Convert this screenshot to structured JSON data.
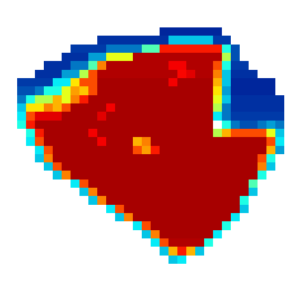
{
  "chart_data": {
    "type": "heatmap",
    "tick_labels": false,
    "zlim": [
      0,
      1
    ],
    "cells": [
      [
        null,
        null,
        null,
        null,
        null,
        null,
        null,
        null,
        null,
        null,
        null,
        null,
        null,
        null,
        null,
        null,
        0.08,
        0.08,
        0.08,
        0.08,
        0.08,
        0.08,
        0.08,
        null,
        null,
        null,
        null,
        null,
        null,
        null
      ],
      [
        null,
        null,
        null,
        null,
        null,
        null,
        null,
        null,
        null,
        0.1,
        0.1,
        0.1,
        0.1,
        0.1,
        0.1,
        0.1,
        0.1,
        0.3,
        0.3,
        0.3,
        0.3,
        0.3,
        0.12,
        0.12,
        null,
        null,
        null,
        null,
        null,
        null
      ],
      [
        null,
        null,
        null,
        null,
        null,
        null,
        0.12,
        0.12,
        0.12,
        0.12,
        0.2,
        0.2,
        0.2,
        0.2,
        0.45,
        0.45,
        0.85,
        0.85,
        0.85,
        0.85,
        0.85,
        0.85,
        0.85,
        0.4,
        0.15,
        null,
        null,
        null,
        null,
        null
      ],
      [
        null,
        null,
        null,
        null,
        null,
        0.1,
        0.1,
        0.1,
        0.25,
        0.25,
        0.6,
        0.6,
        0.6,
        0.95,
        0.95,
        0.95,
        0.95,
        0.95,
        0.95,
        0.95,
        0.95,
        0.95,
        0.95,
        0.55,
        0.15,
        null,
        null,
        null,
        null,
        null
      ],
      [
        null,
        null,
        null,
        0.1,
        0.1,
        0.1,
        0.2,
        0.2,
        0.45,
        0.75,
        0.95,
        0.95,
        0.95,
        0.95,
        0.95,
        0.95,
        0.95,
        0.88,
        0.88,
        0.95,
        0.95,
        0.95,
        0.8,
        0.4,
        0.12,
        0.12,
        null,
        null,
        null,
        null
      ],
      [
        null,
        null,
        0.1,
        0.1,
        0.1,
        0.25,
        0.25,
        0.55,
        0.8,
        0.95,
        0.95,
        0.95,
        0.95,
        0.95,
        0.95,
        0.95,
        0.95,
        0.95,
        0.87,
        0.9,
        0.95,
        0.95,
        0.75,
        0.3,
        0.1,
        0.1,
        0.1,
        null,
        null,
        null
      ],
      [
        0.12,
        0.12,
        0.12,
        0.12,
        0.35,
        0.35,
        0.65,
        0.8,
        0.8,
        0.96,
        0.96,
        0.96,
        0.96,
        0.96,
        0.96,
        0.96,
        0.96,
        0.88,
        0.96,
        0.96,
        0.96,
        0.96,
        0.7,
        0.3,
        0.08,
        0.08,
        0.08,
        0.08,
        0.08,
        null
      ],
      [
        0.15,
        0.15,
        0.2,
        0.4,
        0.4,
        0.6,
        0.72,
        0.68,
        0.8,
        0.96,
        0.96,
        0.96,
        0.96,
        0.96,
        0.96,
        0.96,
        0.96,
        0.96,
        0.96,
        0.96,
        0.96,
        0.96,
        0.65,
        0.25,
        0.08,
        0.08,
        0.08,
        0.08,
        0.08,
        null
      ],
      [
        0.2,
        0.4,
        0.55,
        0.55,
        0.7,
        0.6,
        0.75,
        0.85,
        0.96,
        0.96,
        0.96,
        0.96,
        0.96,
        0.96,
        0.96,
        0.96,
        0.96,
        0.96,
        0.96,
        0.96,
        0.96,
        0.96,
        0.6,
        0.3,
        0.1,
        0.1,
        0.1,
        0.1,
        0.1,
        0.1
      ],
      [
        0.3,
        0.65,
        0.65,
        0.75,
        0.7,
        0.8,
        0.96,
        0.96,
        0.96,
        0.96,
        0.88,
        0.96,
        0.96,
        0.96,
        0.96,
        0.96,
        0.96,
        0.96,
        0.96,
        0.96,
        0.96,
        0.96,
        0.55,
        0.2,
        0.1,
        0.1,
        0.1,
        0.1,
        0.1,
        0.1
      ],
      [
        0.35,
        0.8,
        0.9,
        0.9,
        0.9,
        0.96,
        0.96,
        0.96,
        0.96,
        0.9,
        0.96,
        0.96,
        0.96,
        0.96,
        0.96,
        0.96,
        0.96,
        0.96,
        0.96,
        0.96,
        0.96,
        0.96,
        0.35,
        0.2,
        0.12,
        0.12,
        0.12,
        0.12,
        0.12,
        0.12
      ],
      [
        0.4,
        0.85,
        0.96,
        0.96,
        0.96,
        0.96,
        0.96,
        0.96,
        0.96,
        0.96,
        0.96,
        0.96,
        0.96,
        0.96,
        0.96,
        0.96,
        0.96,
        0.96,
        0.96,
        0.96,
        0.96,
        0.96,
        null,
        0.4,
        0.2,
        0.15,
        0.15,
        0.2,
        0.25,
        0.2
      ],
      [
        null,
        0.4,
        0.85,
        0.96,
        0.96,
        0.96,
        0.96,
        0.96,
        0.88,
        0.96,
        0.96,
        0.96,
        0.96,
        0.96,
        0.96,
        0.96,
        0.96,
        0.96,
        0.96,
        0.96,
        0.96,
        0.96,
        0.55,
        0.7,
        0.8,
        0.8,
        0.8,
        0.8,
        0.6,
        0.3
      ],
      [
        null,
        0.35,
        0.8,
        0.96,
        0.96,
        0.96,
        0.96,
        0.96,
        0.96,
        0.88,
        0.96,
        0.96,
        0.96,
        0.7,
        0.75,
        0.96,
        0.96,
        0.96,
        0.96,
        0.96,
        0.96,
        0.96,
        0.96,
        0.96,
        0.96,
        0.96,
        0.96,
        0.96,
        0.8,
        0.35
      ],
      [
        null,
        null,
        0.35,
        0.8,
        0.96,
        0.96,
        0.96,
        0.96,
        0.96,
        0.96,
        0.96,
        0.96,
        0.96,
        0.8,
        0.72,
        0.85,
        0.96,
        0.96,
        0.96,
        0.96,
        0.96,
        0.96,
        0.96,
        0.96,
        0.96,
        0.96,
        0.96,
        0.96,
        0.7,
        0.25
      ],
      [
        null,
        null,
        0.3,
        0.75,
        0.96,
        0.96,
        0.96,
        0.96,
        0.96,
        0.96,
        0.96,
        0.96,
        0.96,
        0.96,
        0.96,
        0.96,
        0.96,
        0.96,
        0.96,
        0.96,
        0.96,
        0.96,
        0.96,
        0.96,
        0.96,
        0.96,
        0.96,
        0.8,
        0.4,
        null
      ],
      [
        null,
        null,
        null,
        0.3,
        0.8,
        0.96,
        0.96,
        0.96,
        0.96,
        0.96,
        0.96,
        0.96,
        0.96,
        0.96,
        0.96,
        0.96,
        0.96,
        0.96,
        0.96,
        0.96,
        0.96,
        0.96,
        0.96,
        0.96,
        0.96,
        0.96,
        0.96,
        0.75,
        0.3,
        null
      ],
      [
        null,
        null,
        null,
        null,
        0.3,
        0.75,
        0.96,
        0.96,
        0.96,
        0.96,
        0.96,
        0.96,
        0.96,
        0.96,
        0.96,
        0.96,
        0.96,
        0.96,
        0.96,
        0.96,
        0.96,
        0.96,
        0.96,
        0.96,
        0.96,
        0.96,
        0.96,
        0.4,
        null,
        null
      ],
      [
        null,
        null,
        null,
        null,
        null,
        null,
        0.35,
        0.8,
        0.96,
        0.96,
        0.96,
        0.96,
        0.96,
        0.96,
        0.96,
        0.96,
        0.96,
        0.96,
        0.96,
        0.96,
        0.96,
        0.96,
        0.96,
        0.96,
        0.96,
        0.96,
        0.45,
        null,
        null,
        null
      ],
      [
        null,
        null,
        null,
        null,
        null,
        null,
        null,
        0.3,
        0.75,
        0.96,
        0.96,
        0.96,
        0.96,
        0.96,
        0.96,
        0.96,
        0.96,
        0.96,
        0.96,
        0.96,
        0.96,
        0.96,
        0.96,
        0.96,
        0.96,
        0.96,
        0.3,
        null,
        null,
        null
      ],
      [
        null,
        null,
        null,
        null,
        null,
        null,
        null,
        null,
        0.3,
        0.75,
        0.96,
        0.96,
        0.96,
        0.96,
        0.96,
        0.96,
        0.96,
        0.96,
        0.96,
        0.96,
        0.96,
        0.96,
        0.96,
        0.96,
        0.96,
        0.4,
        null,
        null,
        null,
        null
      ],
      [
        null,
        null,
        null,
        null,
        null,
        null,
        null,
        null,
        null,
        null,
        0.35,
        0.8,
        0.96,
        0.96,
        0.96,
        0.96,
        0.96,
        0.96,
        0.96,
        0.96,
        0.96,
        0.96,
        0.96,
        0.96,
        0.96,
        0.3,
        null,
        null,
        null,
        null
      ],
      [
        null,
        null,
        null,
        null,
        null,
        null,
        null,
        null,
        null,
        null,
        null,
        0.3,
        0.75,
        0.96,
        0.96,
        0.96,
        0.96,
        0.96,
        0.96,
        0.96,
        0.96,
        0.96,
        0.96,
        0.96,
        0.35,
        null,
        null,
        null,
        null,
        null
      ],
      [
        null,
        null,
        null,
        null,
        null,
        null,
        null,
        null,
        null,
        null,
        null,
        null,
        null,
        0.35,
        0.8,
        0.96,
        0.96,
        0.96,
        0.96,
        0.96,
        0.96,
        0.96,
        0.96,
        0.4,
        null,
        null,
        null,
        null,
        null,
        null
      ],
      [
        null,
        null,
        null,
        null,
        null,
        null,
        null,
        null,
        null,
        null,
        null,
        null,
        null,
        null,
        0.3,
        0.75,
        0.96,
        0.96,
        0.96,
        0.96,
        0.96,
        0.96,
        0.35,
        null,
        null,
        null,
        null,
        null,
        null,
        null
      ],
      [
        null,
        null,
        null,
        null,
        null,
        null,
        null,
        null,
        null,
        null,
        null,
        null,
        null,
        null,
        null,
        0.35,
        0.8,
        0.95,
        0.95,
        0.95,
        0.95,
        0.4,
        null,
        null,
        null,
        null,
        null,
        null,
        null,
        null
      ],
      [
        null,
        null,
        null,
        null,
        null,
        null,
        null,
        null,
        null,
        null,
        null,
        null,
        null,
        null,
        null,
        null,
        0.3,
        0.7,
        0.85,
        0.7,
        0.3,
        null,
        null,
        null,
        null,
        null,
        null,
        null,
        null,
        null
      ],
      [
        null,
        null,
        null,
        null,
        null,
        null,
        null,
        null,
        null,
        null,
        null,
        null,
        null,
        null,
        null,
        null,
        null,
        0.3,
        0.35,
        null,
        null,
        null,
        null,
        null,
        null,
        null,
        null,
        null,
        null,
        null
      ]
    ]
  }
}
